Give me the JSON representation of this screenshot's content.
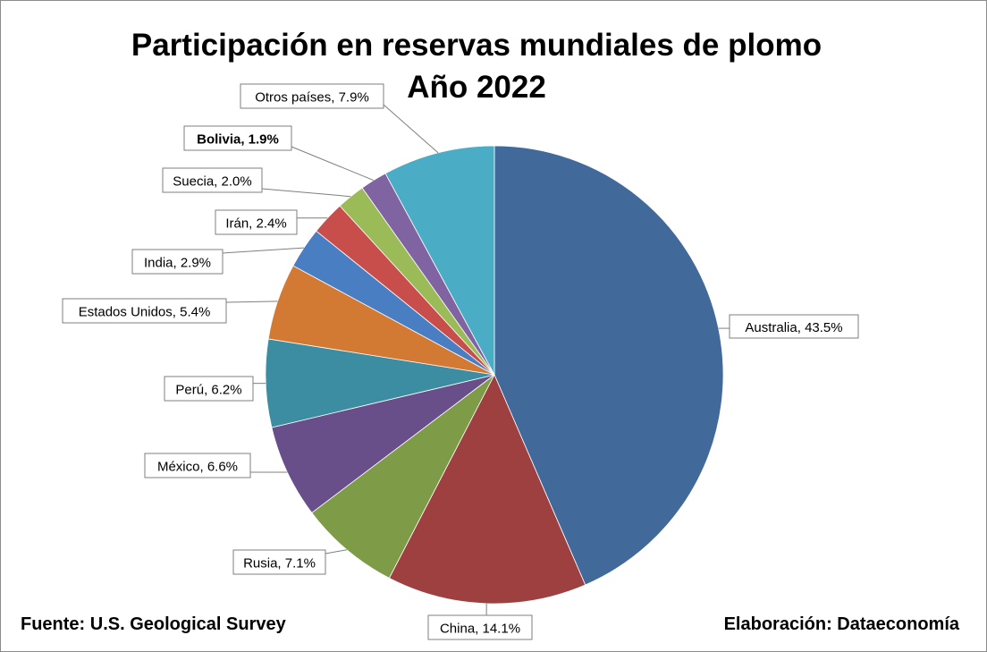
{
  "title": {
    "line1": "Participación en reservas mundiales de plomo",
    "line2": "Año 2022"
  },
  "footer": {
    "source": "Fuente: U.S. Geological Survey",
    "credit": "Elaboración: Dataeconomía"
  },
  "chart_data": {
    "type": "pie",
    "title": "Participación en reservas mundiales de plomo Año 2022",
    "start": "12 o'clock",
    "direction": "clockwise",
    "legend": "none",
    "unit": "%",
    "slices": [
      {
        "label": "Australia",
        "value": 43.5,
        "text": "Australia, 43.5%",
        "color": "#41699A",
        "bold": false
      },
      {
        "label": "China",
        "value": 14.1,
        "text": "China, 14.1%",
        "color": "#9E403F",
        "bold": false
      },
      {
        "label": "Rusia",
        "value": 7.1,
        "text": "Rusia, 7.1%",
        "color": "#7E9B48",
        "bold": false
      },
      {
        "label": "México",
        "value": 6.6,
        "text": "México, 6.6%",
        "color": "#684F8A",
        "bold": false
      },
      {
        "label": "Perú",
        "value": 6.2,
        "text": "Perú, 6.2%",
        "color": "#3C8DA2",
        "bold": false
      },
      {
        "label": "Estados Unidos",
        "value": 5.4,
        "text": "Estados Unidos, 5.4%",
        "color": "#D27A33",
        "bold": false
      },
      {
        "label": "India",
        "value": 2.9,
        "text": "India, 2.9%",
        "color": "#4A7EC3",
        "bold": false
      },
      {
        "label": "Irán",
        "value": 2.4,
        "text": "Irán, 2.4%",
        "color": "#C84E4C",
        "bold": false
      },
      {
        "label": "Suecia",
        "value": 2.0,
        "text": "Suecia, 2.0%",
        "color": "#9BBB59",
        "bold": false
      },
      {
        "label": "Bolivia",
        "value": 1.9,
        "text": "Bolivia, 1.9%",
        "color": "#8064A2",
        "bold": true
      },
      {
        "label": "Otros países",
        "value": 7.9,
        "text": "Otros países, 7.9%",
        "color": "#4BACC6",
        "bold": false
      }
    ]
  }
}
